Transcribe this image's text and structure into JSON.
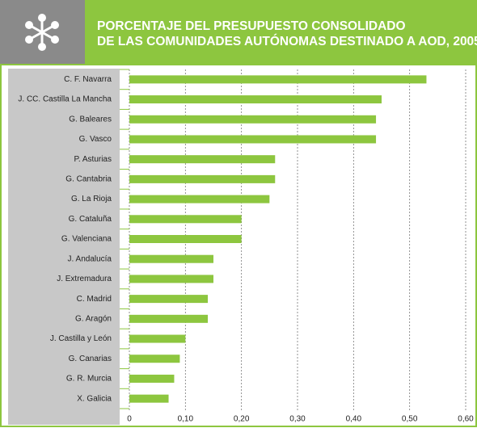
{
  "chart_data": {
    "type": "bar",
    "orientation": "horizontal",
    "title": [
      "PORCENTAJE DEL PRESUPUESTO CONSOLIDADO",
      "DE LAS COMUNIDADES AUTÓNOMAS DESTINADO A AOD, 2005"
    ],
    "categories": [
      "C. F. Navarra",
      "J. CC. Castilla La Mancha",
      "G. Baleares",
      "G. Vasco",
      "P. Asturias",
      "G. Cantabria",
      "G. La Rioja",
      "G. Cataluña",
      "G. Valenciana",
      "J. Andalucía",
      "J. Extremadura",
      "C. Madrid",
      "G. Aragón",
      "J. Castilla y León",
      "G. Canarias",
      "G. R. Murcia",
      "X. Galicia"
    ],
    "values": [
      0.53,
      0.45,
      0.44,
      0.44,
      0.26,
      0.26,
      0.25,
      0.2,
      0.2,
      0.15,
      0.15,
      0.14,
      0.14,
      0.1,
      0.09,
      0.08,
      0.07
    ],
    "color": "#8dc63f",
    "xlim": [
      0,
      0.6
    ],
    "xticks": [
      0,
      {
        "value": 0.1,
        "label": "0,10"
      },
      {
        "value": 0.2,
        "label": "0,20"
      },
      {
        "value": 0.3,
        "label": "0,30"
      },
      {
        "value": 0.4,
        "label": "0,40"
      },
      {
        "value": 0.5,
        "label": "0,50"
      },
      {
        "value": 0.6,
        "label": "0,60"
      }
    ],
    "grid": true
  }
}
